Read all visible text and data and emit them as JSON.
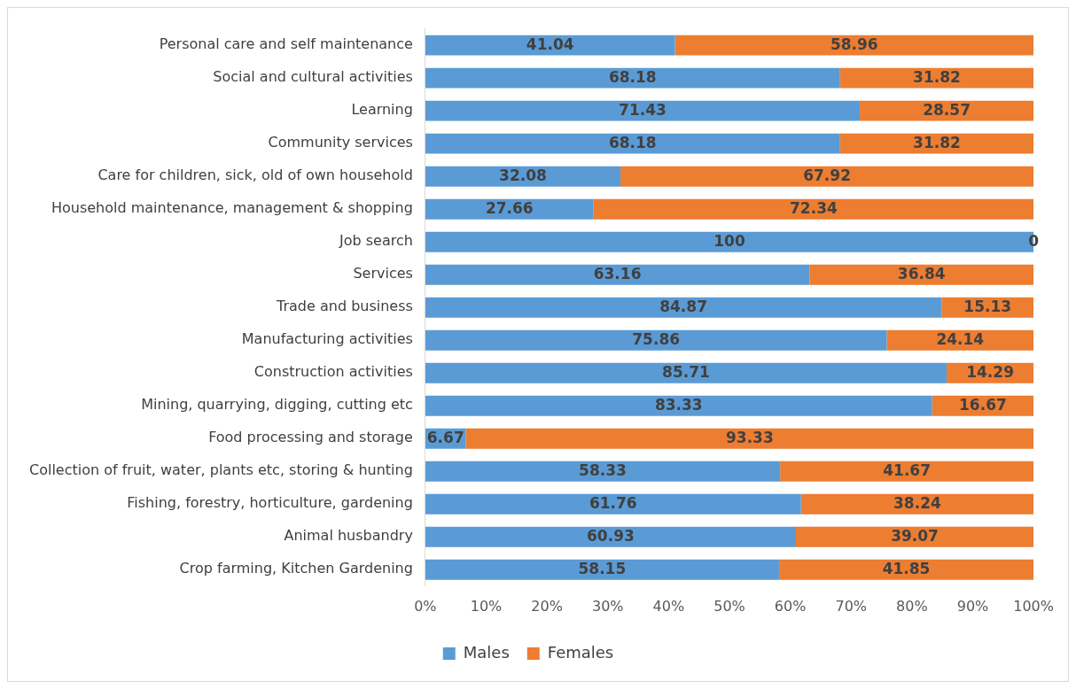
{
  "chart_data": {
    "type": "bar",
    "orientation": "horizontal",
    "stacked": true,
    "categories": [
      "Personal care and self maintenance",
      "Social and cultural activities",
      "Learning",
      "Community services",
      "Care for children, sick, old of own household",
      "Household maintenance, management & shopping",
      "Job search",
      "Services",
      "Trade and business",
      "Manufacturing activities",
      "Construction activities",
      "Mining, quarrying, digging, cutting etc",
      "Food processing and storage",
      "Collection of fruit, water, plants etc, storing & hunting",
      "Fishing, forestry, horticulture, gardening",
      "Animal husbandry",
      "Crop farming, Kitchen Gardening"
    ],
    "series": [
      {
        "name": "Males",
        "color": "#5b9bd5",
        "values": [
          41.04,
          68.18,
          71.43,
          68.18,
          32.08,
          27.66,
          100,
          63.16,
          84.87,
          75.86,
          85.71,
          83.33,
          6.67,
          58.33,
          61.76,
          60.93,
          58.15
        ]
      },
      {
        "name": "Females",
        "color": "#ed7d31",
        "values": [
          58.96,
          31.82,
          28.57,
          31.82,
          67.92,
          72.34,
          0,
          36.84,
          15.13,
          24.14,
          14.29,
          16.67,
          93.33,
          41.67,
          38.24,
          39.07,
          41.85
        ]
      }
    ],
    "xlim": [
      0,
      100
    ],
    "xticks": [
      {
        "value": 0,
        "label": "0%"
      },
      {
        "value": 10,
        "label": "10%"
      },
      {
        "value": 20,
        "label": "20%"
      },
      {
        "value": 30,
        "label": "30%"
      },
      {
        "value": 40,
        "label": "40%"
      },
      {
        "value": 50,
        "label": "50%"
      },
      {
        "value": 60,
        "label": "60%"
      },
      {
        "value": 70,
        "label": "70%"
      },
      {
        "value": 80,
        "label": "80%"
      },
      {
        "value": 90,
        "label": "90%"
      },
      {
        "value": 100,
        "label": "100%"
      }
    ],
    "data_labels": true,
    "grid": false,
    "legend": "bottom"
  }
}
